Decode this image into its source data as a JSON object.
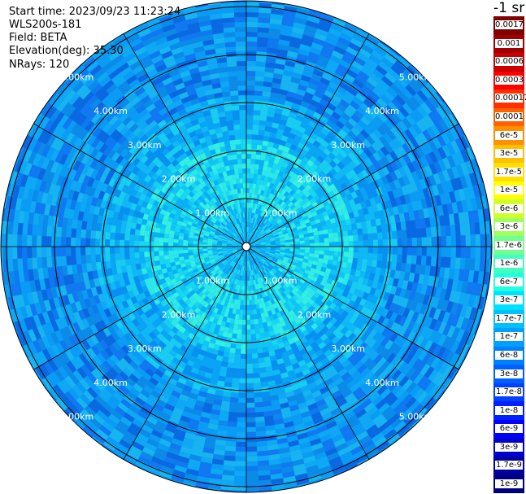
{
  "info": {
    "start_time": "Start time: 2023/09/23 11:23:24",
    "instrument": "WLS200s-181",
    "field": "Field: BETA",
    "elevation": "Elevation(deg): 35.30",
    "nrays": "NRays: 120"
  },
  "colorbar": {
    "unit_label": "-1 sr",
    "labels": [
      "0.0017",
      "0.001",
      "0.0006",
      "0.0003",
      "0.00017",
      "0.0001",
      "6e-5",
      "3e-5",
      "1.7e-5",
      "1e-5",
      "6e-6",
      "3e-6",
      "1.7e-6",
      "1e-6",
      "6e-7",
      "3e-7",
      "1.7e-7",
      "1e-7",
      "6e-8",
      "3e-8",
      "1.7e-8",
      "1e-8",
      "6e-9",
      "3e-9",
      "1.7e-9",
      "1e-9"
    ],
    "colors": [
      "#800000",
      "#a00000",
      "#cc0000",
      "#ff0000",
      "#ff3000",
      "#ff6000",
      "#ff9000",
      "#ffc000",
      "#ffe000",
      "#ffff00",
      "#d0ff30",
      "#a0ff60",
      "#70ff90",
      "#40ffc0",
      "#20ffe0",
      "#00e0ff",
      "#00c0ff",
      "#00a0ff",
      "#0080ff",
      "#0060ff",
      "#0040ff",
      "#0020ff",
      "#0000ff",
      "#0000d0",
      "#0000a0",
      "#000080"
    ]
  },
  "chart_data": {
    "type": "heatmap",
    "projection": "polar (PPI)",
    "range_rings_km": [
      1,
      2,
      3,
      4,
      5
    ],
    "ring_labels": [
      "1.00km",
      "2.00km",
      "3.00km",
      "4.00km",
      "5.00km"
    ],
    "n_rays": 120,
    "field": "BETA",
    "elevation_deg": 35.3,
    "azimuth_lines_deg": [
      0,
      30,
      60,
      90,
      120,
      150,
      180,
      210,
      240,
      270,
      300,
      330
    ],
    "value_pattern": {
      "center_range_km": 0.0,
      "near_value": "1e-7 to 3e-7",
      "far_value": "1.7e-8 to 6e-8"
    }
  }
}
